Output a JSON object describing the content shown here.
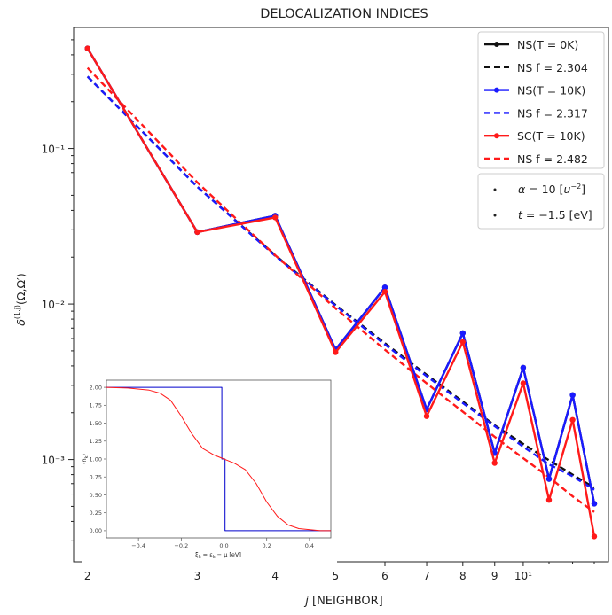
{
  "chart_data": [
    {
      "type": "line",
      "title": "DELOCALIZATION INDICES",
      "xlabel": "j [NEIGHBOR]",
      "ylabel": "δ^(1,j)(Ω,Ω′)",
      "xscale": "log",
      "yscale": "log",
      "xlim": [
        1.9,
        13.7
      ],
      "ylim": [
        0.00022,
        0.6
      ],
      "xtick_labels": [
        "2",
        "3",
        "4",
        "5",
        "6",
        "7",
        "8",
        "9",
        "10¹"
      ],
      "xtick_values": [
        2,
        3,
        4,
        5,
        6,
        7,
        8,
        9,
        10
      ],
      "ytick_labels": [
        "10⁻¹",
        "10⁻²",
        "10⁻³"
      ],
      "ytick_values": [
        0.1,
        0.01,
        0.001
      ],
      "grid": false,
      "legend_position": "top-right",
      "x": [
        2,
        3,
        4,
        5,
        6,
        7,
        8,
        9,
        10,
        11,
        12,
        13
      ],
      "series": [
        {
          "name": "NS(T = 0K)",
          "style": "solid-marker",
          "color": "#111111",
          "values": [
            0.44,
            0.029,
            0.037,
            0.0051,
            0.0128,
            0.0021,
            0.0065,
            0.0011,
            0.0039,
            0.00075,
            0.0026,
            0.00052
          ]
        },
        {
          "name": "NS f = 2.304",
          "style": "dashed",
          "color": "#111111",
          "values": [
            0.29,
            0.0568,
            0.0206,
            0.00986,
            0.0056,
            0.00351,
            0.00236,
            0.00166,
            0.00126,
            0.00099,
            0.0008,
            0.00066
          ]
        },
        {
          "name": "NS(T = 10K)",
          "style": "solid-marker",
          "color": "#1a1aff",
          "values": [
            0.44,
            0.029,
            0.037,
            0.0051,
            0.0128,
            0.0021,
            0.0065,
            0.0011,
            0.0039,
            0.00075,
            0.0026,
            0.00052
          ]
        },
        {
          "name": "NS f = 2.317",
          "style": "dashed",
          "color": "#1a1aff",
          "values": [
            0.29,
            0.0567,
            0.0204,
            0.00976,
            0.00549,
            0.00344,
            0.00231,
            0.00164,
            0.00121,
            0.00093,
            0.00078,
            0.00064
          ]
        },
        {
          "name": "SC(T = 10K)",
          "style": "solid-marker",
          "color": "#ff1a1a",
          "values": [
            0.44,
            0.029,
            0.036,
            0.0049,
            0.012,
            0.0019,
            0.0057,
            0.00095,
            0.0031,
            0.00055,
            0.0018,
            0.00032
          ]
        },
        {
          "name": "NS f = 2.482",
          "style": "dashed",
          "color": "#ff1a1a",
          "values": [
            0.33,
            0.0606,
            0.0206,
            0.00939,
            0.00508,
            0.00309,
            0.00203,
            0.0014,
            0.00102,
            0.00077,
            0.00058,
            0.00046
          ]
        }
      ],
      "legend2": [
        "α = 10 [u⁻²]",
        "t = −1.5 [eV]"
      ]
    },
    {
      "type": "line",
      "title": "",
      "xlabel": "ξ_k = ε_k − μ [eV]",
      "ylabel": "⟨n_k⟩",
      "xlim": [
        -0.55,
        0.5
      ],
      "ylim": [
        -0.1,
        2.1
      ],
      "xtick_labels": [
        "−0.4",
        "−0.2",
        "0.0",
        "0.2",
        "0.4"
      ],
      "xtick_values": [
        -0.4,
        -0.2,
        0.0,
        0.2,
        0.4
      ],
      "ytick_labels": [
        "0.00",
        "0.25",
        "0.50",
        "0.75",
        "1.00",
        "1.25",
        "1.50",
        "1.75",
        "2.00"
      ],
      "ytick_values": [
        0,
        0.25,
        0.5,
        0.75,
        1.0,
        1.25,
        1.5,
        1.75,
        2.0
      ],
      "series": [
        {
          "color": "#0000cc",
          "x": [
            -0.55,
            -0.01,
            -0.01,
            0.005,
            0.005,
            0.5
          ],
          "values": [
            2.0,
            2.0,
            1.0,
            1.0,
            0.0,
            0.0
          ]
        },
        {
          "color": "#ff1a1a",
          "x": [
            -0.55,
            -0.45,
            -0.35,
            -0.3,
            -0.25,
            -0.2,
            -0.15,
            -0.1,
            -0.05,
            0.0,
            0.05,
            0.1,
            0.15,
            0.2,
            0.25,
            0.3,
            0.35,
            0.45,
            0.5
          ],
          "values": [
            2.0,
            1.99,
            1.96,
            1.92,
            1.82,
            1.6,
            1.35,
            1.15,
            1.06,
            1.0,
            0.94,
            0.85,
            0.66,
            0.4,
            0.2,
            0.08,
            0.03,
            0.0,
            0.0
          ]
        }
      ]
    }
  ]
}
